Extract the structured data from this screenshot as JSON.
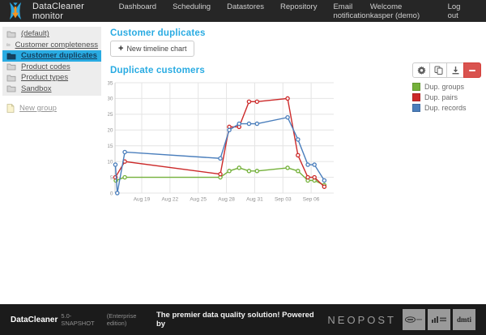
{
  "header": {
    "app_title": "DataCleaner monitor",
    "nav": [
      "Dashboard",
      "Scheduling",
      "Datastores",
      "Repository",
      "Email notification"
    ],
    "welcome": "Welcome kasper (demo)",
    "logout": "Log out"
  },
  "sidebar": {
    "items": [
      {
        "label": "(default)",
        "selected": false
      },
      {
        "label": "Customer completeness",
        "selected": false
      },
      {
        "label": "Customer duplicates",
        "selected": true
      },
      {
        "label": "Product codes",
        "selected": false
      },
      {
        "label": "Product types",
        "selected": false
      },
      {
        "label": "Sandbox",
        "selected": false
      }
    ],
    "new_group_label": "New group"
  },
  "main": {
    "page_title": "Customer duplicates",
    "new_chart_plus": "+",
    "new_chart_button": "New timeline chart"
  },
  "toolbar": {
    "buttons": [
      "gear",
      "copy",
      "download",
      "remove"
    ]
  },
  "chart_data": {
    "type": "line",
    "title": "Duplicate customers",
    "x_unit": "days since Aug 16",
    "xlim": [
      0.16,
      23.4
    ],
    "ylim": [
      0,
      35
    ],
    "ytick_step": 5,
    "grid": true,
    "legend_position": "right",
    "xticks": [
      {
        "u": 3,
        "label": "Aug 19"
      },
      {
        "u": 6,
        "label": "Aug 22"
      },
      {
        "u": 9,
        "label": "Aug 25"
      },
      {
        "u": 12,
        "label": "Aug 28"
      },
      {
        "u": 15,
        "label": "Aug 31"
      },
      {
        "u": 18,
        "label": "Sep 03"
      },
      {
        "u": 21,
        "label": "Sep 06"
      }
    ],
    "series": [
      {
        "name": "Dup. groups",
        "color": "#74b13a",
        "points": [
          [
            0.25,
            4
          ],
          [
            1.2,
            5
          ],
          [
            11.35,
            5
          ],
          [
            12.3,
            7
          ],
          [
            13.35,
            8
          ],
          [
            14.4,
            7
          ],
          [
            15.25,
            7
          ],
          [
            18.5,
            8
          ],
          [
            19.6,
            7
          ],
          [
            20.65,
            4
          ],
          [
            21.35,
            4
          ],
          [
            22.4,
            2.5
          ]
        ]
      },
      {
        "name": "Dup. pairs",
        "color": "#cc2a2a",
        "points": [
          [
            0.2,
            5
          ],
          [
            1.2,
            10
          ],
          [
            11.35,
            6
          ],
          [
            12.3,
            21
          ],
          [
            13.35,
            21
          ],
          [
            14.4,
            29
          ],
          [
            15.25,
            29
          ],
          [
            18.5,
            30
          ],
          [
            19.6,
            12
          ],
          [
            20.65,
            5
          ],
          [
            21.35,
            5
          ],
          [
            22.4,
            2
          ]
        ]
      },
      {
        "name": "Dup. records",
        "color": "#4a7ebc",
        "points": [
          [
            0.2,
            9
          ],
          [
            0.4,
            0
          ],
          [
            1.2,
            13
          ],
          [
            11.35,
            11
          ],
          [
            12.3,
            20
          ],
          [
            13.35,
            22
          ],
          [
            14.4,
            22
          ],
          [
            15.25,
            22
          ],
          [
            18.5,
            24
          ],
          [
            19.6,
            17
          ],
          [
            20.65,
            9
          ],
          [
            21.35,
            9
          ],
          [
            22.4,
            4
          ]
        ]
      }
    ]
  },
  "footer": {
    "product": "DataCleaner",
    "version": "5.0-SNAPSHOT",
    "edition": "(Enterprise edition)",
    "tagline": "The premier data quality solution! Powered by",
    "brand": "NEOPOST",
    "dmti_text": "dmti"
  }
}
